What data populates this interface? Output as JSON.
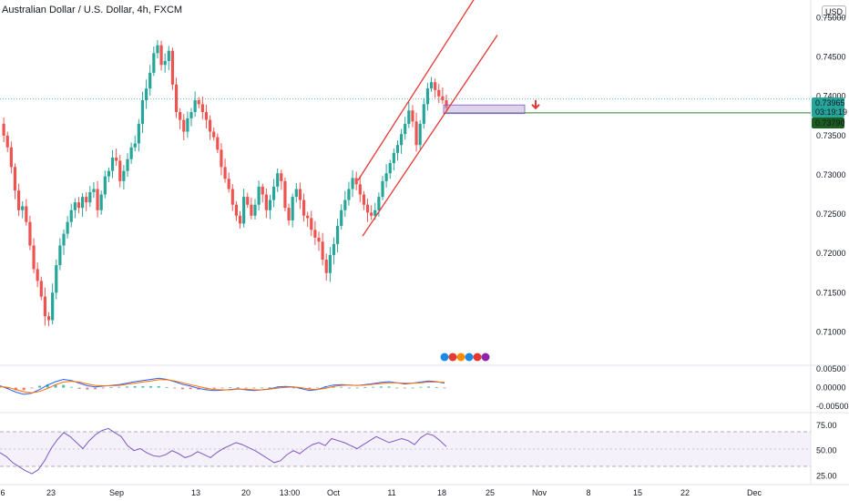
{
  "header": {
    "title": "Australian Dollar / U.S. Dollar, 4h, FXCM",
    "currency": "USD"
  },
  "price_labels": {
    "current_price": "0.73965",
    "countdown": "03:19:19",
    "level_price": "0.73790"
  },
  "colors": {
    "up": "#26a69a",
    "down": "#ef5350",
    "channel": "#e53935",
    "zone": "#b39ddb",
    "macd_line": "#2962ff",
    "signal_line": "#ff6d00",
    "rsi_line": "#7e57c2",
    "level_line": "#2e7d32"
  },
  "chart_data": [
    {
      "type": "candlestick",
      "title": "Australian Dollar / U.S. Dollar, 4h, FXCM",
      "x_ticks": [
        "6",
        "23",
        "Sep",
        "13",
        "20",
        "13:00",
        "Oct",
        "11",
        "18",
        "25",
        "Nov",
        "8",
        "15",
        "22",
        "Dec"
      ],
      "y_ticks": [
        "0.75000",
        "0.74500",
        "0.74000",
        "0.73500",
        "0.73000",
        "0.72500",
        "0.72000",
        "0.71500",
        "0.71000"
      ],
      "ylim": [
        0.7068,
        0.7518
      ],
      "close_path": [
        0.7365,
        0.735,
        0.7335,
        0.731,
        0.728,
        0.7255,
        0.726,
        0.724,
        0.721,
        0.718,
        0.7165,
        0.7145,
        0.712,
        0.7115,
        0.715,
        0.7185,
        0.721,
        0.7225,
        0.724,
        0.7255,
        0.7265,
        0.7258,
        0.7272,
        0.7265,
        0.7278,
        0.7282,
        0.7255,
        0.7275,
        0.7298,
        0.7305,
        0.7322,
        0.7318,
        0.7292,
        0.7305,
        0.732,
        0.7335,
        0.734,
        0.7365,
        0.7395,
        0.741,
        0.743,
        0.7455,
        0.7465,
        0.744,
        0.7445,
        0.7458,
        0.7415,
        0.738,
        0.737,
        0.7355,
        0.7372,
        0.738,
        0.7395,
        0.739,
        0.738,
        0.737,
        0.7355,
        0.7348,
        0.7332,
        0.731,
        0.7295,
        0.7282,
        0.7262,
        0.7248,
        0.7238,
        0.7272,
        0.7262,
        0.7248,
        0.7262,
        0.7285,
        0.7275,
        0.7255,
        0.7268,
        0.7285,
        0.7302,
        0.7292,
        0.7258,
        0.7242,
        0.7272,
        0.7282,
        0.7268,
        0.7248,
        0.7245,
        0.723,
        0.722,
        0.7215,
        0.7192,
        0.7175,
        0.7198,
        0.7212,
        0.7235,
        0.7255,
        0.7268,
        0.7282,
        0.7296,
        0.7288,
        0.7275,
        0.7262,
        0.7252,
        0.7248,
        0.7255,
        0.7272,
        0.7292,
        0.7302,
        0.7315,
        0.7328,
        0.7338,
        0.7352,
        0.7365,
        0.7382,
        0.7368,
        0.7338,
        0.7365,
        0.739,
        0.741,
        0.7418,
        0.7408,
        0.74,
        0.7395,
        0.7385
      ],
      "annotations": [
        {
          "kind": "channel",
          "upper": [
            [
              0.7293,
              0.7532
            ],
            [
              0.7296,
              0.752
            ]
          ],
          "lower": [
            [
              0.7222,
              0.7478
            ],
            [
              0.7224,
              0.7479
            ]
          ]
        },
        {
          "kind": "sell_zone",
          "range": [
            0.7378,
            0.7389
          ]
        },
        {
          "kind": "horizontal_level",
          "value": 0.7379
        },
        {
          "kind": "current_price_dotted",
          "value": 0.73965
        },
        {
          "kind": "arrow_down"
        }
      ]
    },
    {
      "type": "line",
      "title": "",
      "y_ticks": [
        "0.00500",
        "0.00000",
        "-0.00500"
      ],
      "ylim": [
        -0.0062,
        0.0055
      ],
      "series": [
        {
          "values": [
            0.0005,
            -0.0003,
            -0.0012,
            -0.0018,
            -0.0015,
            -0.0005,
            0.0007,
            0.0016,
            0.0022,
            0.0019,
            0.0012,
            0.0005,
            0.0002,
            0.0004,
            0.0006,
            0.0008,
            0.0012,
            0.0016,
            0.0019,
            0.0022,
            0.0025,
            0.0022,
            0.0016,
            0.0009,
            0.0004,
            -0.0002,
            -0.0006,
            -0.0008,
            -0.0007,
            -0.0005,
            -0.0003,
            -0.0006,
            -0.0008,
            -0.0006,
            -0.0003,
            0.0002,
            0.0003,
            0.0002,
            -0.0003,
            -0.0008,
            -0.0005,
            0.0002,
            0.0007,
            0.0008,
            0.0007,
            0.0006,
            0.0008,
            0.0011,
            0.0014,
            0.0016,
            0.0013,
            0.001,
            0.0012,
            0.0015,
            0.0018,
            0.0016,
            0.0012
          ]
        },
        {
          "values": [
            0.0003,
            0.0001,
            -0.0005,
            -0.0011,
            -0.0014,
            -0.001,
            -0.0002,
            0.0008,
            0.0015,
            0.0017,
            0.0015,
            0.001,
            0.0006,
            0.0005,
            0.0005,
            0.0006,
            0.0009,
            0.0012,
            0.0015,
            0.0018,
            0.0021,
            0.0021,
            0.0018,
            0.0013,
            0.0008,
            0.0003,
            -0.0002,
            -0.0005,
            -0.0006,
            -0.0006,
            -0.0004,
            -0.0004,
            -0.0006,
            -0.0006,
            -0.0004,
            -0.0001,
            0.0001,
            0.0002,
            0.0,
            -0.0004,
            -0.0005,
            -0.0002,
            0.0003,
            0.0006,
            0.0007,
            0.0006,
            0.0007,
            0.0009,
            0.0011,
            0.0013,
            0.0013,
            0.0012,
            0.0012,
            0.0013,
            0.0015,
            0.0015,
            0.0014
          ]
        }
      ]
    },
    {
      "type": "line",
      "title": "",
      "y_ticks": [
        "75.00",
        "50.00",
        "25.00"
      ],
      "ylim": [
        18,
        86
      ],
      "series": [
        {
          "values": [
            48,
            44,
            38,
            34,
            30,
            27,
            31,
            40,
            52,
            61,
            68,
            64,
            58,
            52,
            60,
            66,
            70,
            72,
            68,
            64,
            55,
            50,
            52,
            48,
            45,
            44,
            46,
            50,
            47,
            43,
            45,
            49,
            46,
            43,
            48,
            52,
            55,
            58,
            56,
            53,
            50,
            46,
            42,
            38,
            40,
            46,
            50,
            47,
            52,
            56,
            58,
            55,
            62,
            60,
            58,
            55,
            52,
            56,
            60,
            64,
            61,
            58,
            60,
            62,
            60,
            56,
            63,
            67,
            65,
            60,
            54
          ]
        }
      ]
    }
  ]
}
